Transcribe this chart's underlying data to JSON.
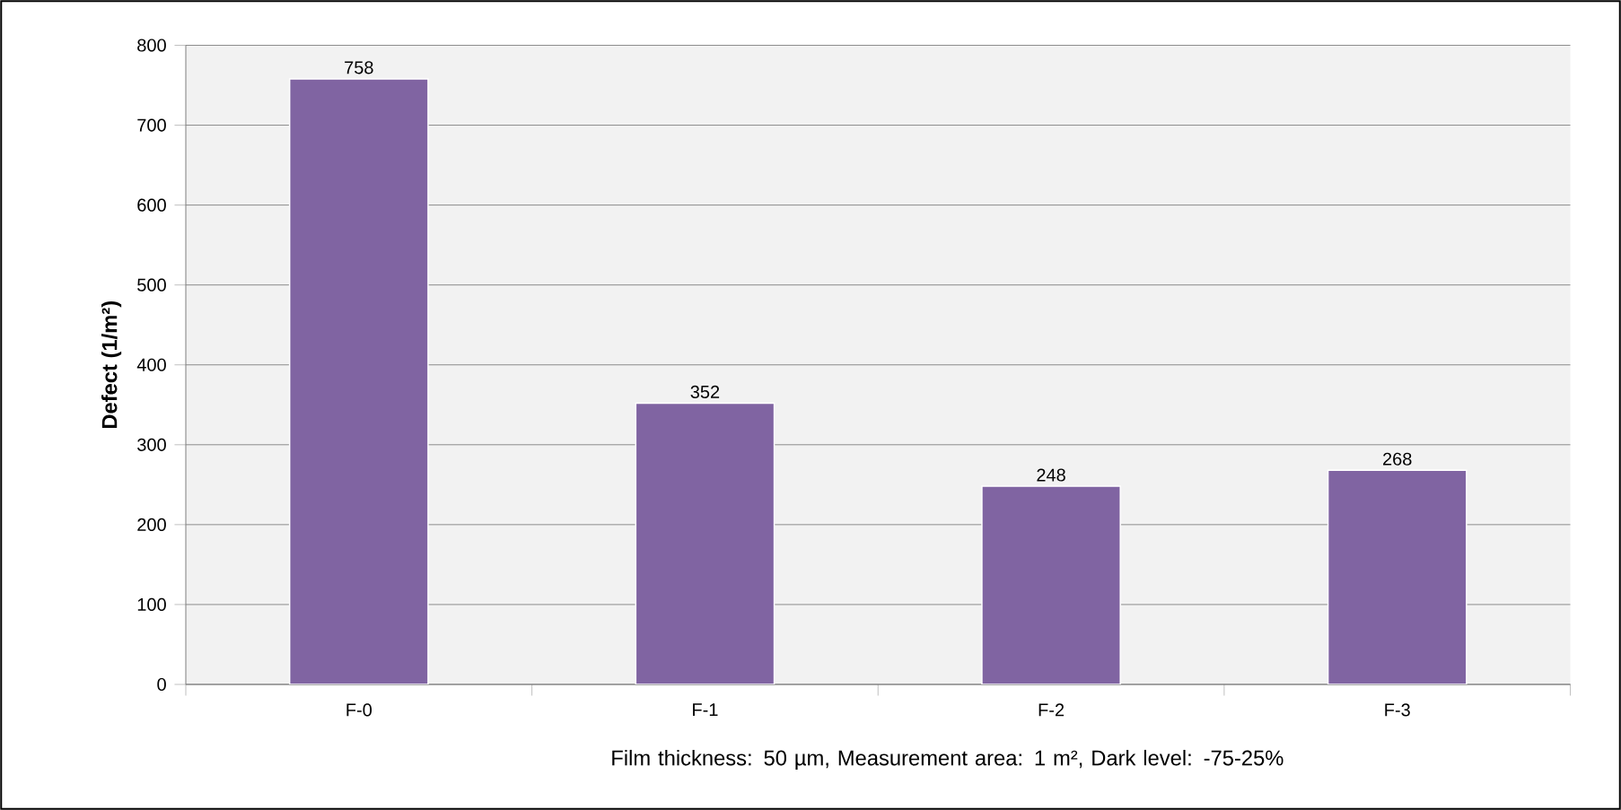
{
  "chart_data": {
    "type": "bar",
    "ylabel": "Defect (1/m²)",
    "xlabel": "Film thickness: 50 µm, Measurement area: 1 m², Dark level: -75-25%",
    "categories": [
      "F-0",
      "F-1",
      "F-2",
      "F-3"
    ],
    "values": [
      758,
      352,
      248,
      268
    ],
    "color": "#8064a2",
    "ylim": [
      0,
      800
    ],
    "yticks": [
      0,
      100,
      200,
      300,
      400,
      500,
      600,
      700,
      800
    ],
    "grid": "y",
    "data_labels": true
  }
}
